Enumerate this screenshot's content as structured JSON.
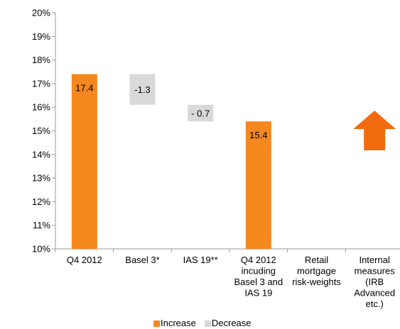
{
  "chart_data": {
    "type": "bar",
    "ylim": [
      10,
      20
    ],
    "yticks": [
      "10%",
      "11%",
      "12%",
      "13%",
      "14%",
      "15%",
      "16%",
      "17%",
      "18%",
      "19%",
      "20%"
    ],
    "categories": [
      [
        "Q4 2012"
      ],
      [
        "Basel 3*"
      ],
      [
        "IAS 19**"
      ],
      [
        "Q4 2012",
        "incuding",
        "Basel 3 and",
        "IAS 19"
      ],
      [
        "Retail",
        "mortgage",
        "risk-weights"
      ],
      [
        "Internal",
        "measures",
        "(IRB",
        "Advanced",
        "etc.)"
      ]
    ],
    "bars": [
      {
        "category_index": 0,
        "kind": "Increase",
        "from": 10,
        "to": 17.4,
        "label": "17.4"
      },
      {
        "category_index": 1,
        "kind": "Decrease",
        "from": 17.4,
        "to": 16.1,
        "label": "-1.3"
      },
      {
        "category_index": 2,
        "kind": "Decrease",
        "from": 16.1,
        "to": 15.4,
        "label": "- 0.7"
      },
      {
        "category_index": 3,
        "kind": "Increase",
        "from": 10,
        "to": 15.4,
        "label": "15.4"
      }
    ],
    "arrow": {
      "category_index": 5,
      "direction": "up",
      "color": "#f26b0f"
    },
    "colors": {
      "increase": "#f5871f",
      "decrease": "#d9d9d9",
      "axis": "#999999"
    },
    "legend": {
      "placement": "bottom",
      "items": [
        "Increase",
        "Decrease"
      ]
    }
  }
}
